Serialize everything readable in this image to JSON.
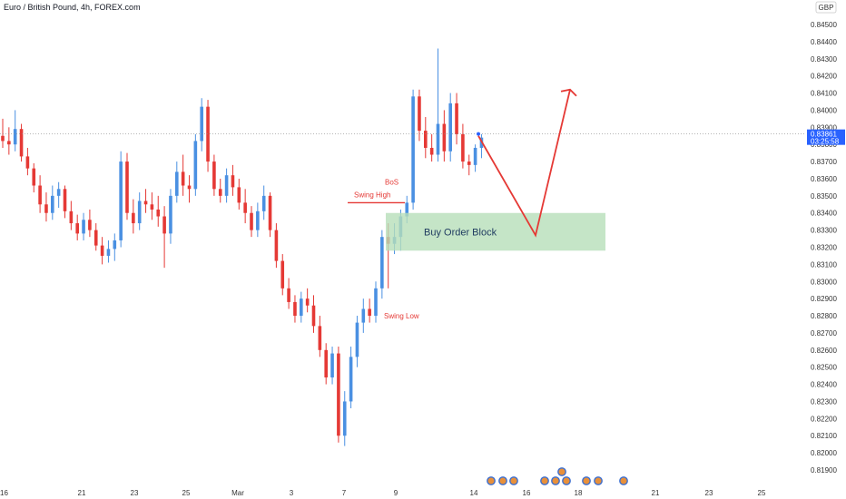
{
  "title": "Euro / British Pound, 4h, FOREX.com",
  "currency": "GBP",
  "chart_data": {
    "type": "candlestick",
    "title": "Euro / British Pound, 4h, FOREX.com",
    "ylim": [
      0.818,
      0.846
    ],
    "y_ticks": [
      "0.84500",
      "0.84400",
      "0.84300",
      "0.84200",
      "0.84100",
      "0.84000",
      "0.83900",
      "0.83800",
      "0.83700",
      "0.83600",
      "0.83500",
      "0.83400",
      "0.83300",
      "0.83200",
      "0.83100",
      "0.83000",
      "0.82900",
      "0.82800",
      "0.82700",
      "0.82600",
      "0.82500",
      "0.82400",
      "0.82300",
      "0.82200",
      "0.82100",
      "0.82000",
      "0.81900"
    ],
    "x_ticks": [
      "16",
      "21",
      "23",
      "25",
      "Mar",
      "3",
      "7",
      "9",
      "14",
      "16",
      "18",
      "21",
      "23",
      "25"
    ],
    "current_price": "0.83861",
    "countdown": "03:25:58",
    "candles": [
      [
        0.8385,
        0.8395,
        0.8378,
        0.8382
      ],
      [
        0.8382,
        0.839,
        0.8374,
        0.838
      ],
      [
        0.838,
        0.84,
        0.8376,
        0.8389
      ],
      [
        0.8389,
        0.8392,
        0.837,
        0.8373
      ],
      [
        0.8373,
        0.8378,
        0.8362,
        0.8366
      ],
      [
        0.8366,
        0.8369,
        0.8352,
        0.8356
      ],
      [
        0.8356,
        0.8362,
        0.834,
        0.8345
      ],
      [
        0.8345,
        0.8352,
        0.8335,
        0.834
      ],
      [
        0.834,
        0.8356,
        0.8336,
        0.835
      ],
      [
        0.835,
        0.8358,
        0.8343,
        0.8354
      ],
      [
        0.8354,
        0.8356,
        0.8337,
        0.8341
      ],
      [
        0.8341,
        0.8347,
        0.833,
        0.8334
      ],
      [
        0.8334,
        0.8339,
        0.8324,
        0.8328
      ],
      [
        0.8328,
        0.834,
        0.8324,
        0.8336
      ],
      [
        0.8336,
        0.8342,
        0.8326,
        0.833
      ],
      [
        0.833,
        0.8334,
        0.8318,
        0.8321
      ],
      [
        0.8321,
        0.8326,
        0.831,
        0.8315
      ],
      [
        0.8315,
        0.8324,
        0.8311,
        0.8319
      ],
      [
        0.8319,
        0.8328,
        0.8312,
        0.8324
      ],
      [
        0.8324,
        0.8376,
        0.832,
        0.837
      ],
      [
        0.837,
        0.8375,
        0.8336,
        0.834
      ],
      [
        0.834,
        0.8348,
        0.8328,
        0.8334
      ],
      [
        0.8334,
        0.8352,
        0.833,
        0.8347
      ],
      [
        0.8347,
        0.8354,
        0.834,
        0.8345
      ],
      [
        0.8345,
        0.8352,
        0.8336,
        0.8342
      ],
      [
        0.8342,
        0.835,
        0.8332,
        0.8338
      ],
      [
        0.8338,
        0.8344,
        0.8308,
        0.8328
      ],
      [
        0.8328,
        0.8354,
        0.8322,
        0.835
      ],
      [
        0.835,
        0.837,
        0.8346,
        0.8364
      ],
      [
        0.8364,
        0.8374,
        0.835,
        0.8356
      ],
      [
        0.8356,
        0.8362,
        0.8346,
        0.8354
      ],
      [
        0.8354,
        0.8386,
        0.835,
        0.8382
      ],
      [
        0.8382,
        0.8407,
        0.8376,
        0.8402
      ],
      [
        0.8402,
        0.8406,
        0.8364,
        0.837
      ],
      [
        0.837,
        0.8374,
        0.835,
        0.8354
      ],
      [
        0.8354,
        0.836,
        0.8346,
        0.835
      ],
      [
        0.835,
        0.8366,
        0.8346,
        0.8362
      ],
      [
        0.8362,
        0.8368,
        0.835,
        0.8355
      ],
      [
        0.8355,
        0.836,
        0.8342,
        0.8346
      ],
      [
        0.8346,
        0.8354,
        0.8334,
        0.834
      ],
      [
        0.834,
        0.8344,
        0.8326,
        0.833
      ],
      [
        0.833,
        0.8346,
        0.8326,
        0.8341
      ],
      [
        0.8341,
        0.8356,
        0.8336,
        0.835
      ],
      [
        0.835,
        0.8352,
        0.8326,
        0.833
      ],
      [
        0.833,
        0.8334,
        0.8308,
        0.8312
      ],
      [
        0.8312,
        0.8316,
        0.8292,
        0.8296
      ],
      [
        0.8296,
        0.8302,
        0.8284,
        0.8288
      ],
      [
        0.8288,
        0.8292,
        0.8276,
        0.828
      ],
      [
        0.828,
        0.8294,
        0.8276,
        0.829
      ],
      [
        0.829,
        0.8296,
        0.8282,
        0.8286
      ],
      [
        0.8286,
        0.8292,
        0.827,
        0.8274
      ],
      [
        0.8274,
        0.828,
        0.8256,
        0.826
      ],
      [
        0.826,
        0.8264,
        0.824,
        0.8244
      ],
      [
        0.8244,
        0.8262,
        0.824,
        0.8258
      ],
      [
        0.8258,
        0.8262,
        0.8206,
        0.821
      ],
      [
        0.821,
        0.8236,
        0.8204,
        0.823
      ],
      [
        0.823,
        0.8262,
        0.8226,
        0.8256
      ],
      [
        0.8256,
        0.828,
        0.825,
        0.8276
      ],
      [
        0.8276,
        0.829,
        0.827,
        0.8284
      ],
      [
        0.8284,
        0.829,
        0.8276,
        0.828
      ],
      [
        0.828,
        0.83,
        0.8276,
        0.8296
      ],
      [
        0.8296,
        0.833,
        0.829,
        0.8326
      ],
      [
        0.8326,
        0.8334,
        0.8296,
        0.8322
      ],
      [
        0.8322,
        0.8334,
        0.8316,
        0.8326
      ],
      [
        0.8326,
        0.8342,
        0.8318,
        0.8338
      ],
      [
        0.8338,
        0.835,
        0.8334,
        0.8346
      ],
      [
        0.8346,
        0.8412,
        0.8342,
        0.8408
      ],
      [
        0.8408,
        0.8412,
        0.8382,
        0.8388
      ],
      [
        0.8388,
        0.8396,
        0.8372,
        0.8378
      ],
      [
        0.8378,
        0.8386,
        0.837,
        0.8374
      ],
      [
        0.8374,
        0.8436,
        0.837,
        0.8392
      ],
      [
        0.8392,
        0.84,
        0.837,
        0.8376
      ],
      [
        0.8376,
        0.841,
        0.837,
        0.8404
      ],
      [
        0.8404,
        0.841,
        0.838,
        0.8386
      ],
      [
        0.8386,
        0.8392,
        0.8366,
        0.837
      ],
      [
        0.837,
        0.8374,
        0.8362,
        0.8368
      ],
      [
        0.8368,
        0.838,
        0.8364,
        0.8378
      ],
      [
        0.8378,
        0.8386,
        0.8372,
        0.8384
      ]
    ],
    "annotations": {
      "swing_high": {
        "label": "Swing High",
        "price": 0.8346
      },
      "bos": {
        "label": "BoS"
      },
      "swing_low": {
        "label": "Swing Low"
      },
      "order_block": {
        "label": "Buy Order Block",
        "top": 0.834,
        "bottom": 0.8318
      },
      "projection": [
        [
          0.8385,
          0.8327
        ],
        [
          0.8412
        ]
      ]
    }
  },
  "colors": {
    "up": "#4a90e2",
    "down": "#e53935",
    "order_block": "#b7dfb9",
    "arrow": "#e53935",
    "price_label": "#2962ff"
  }
}
